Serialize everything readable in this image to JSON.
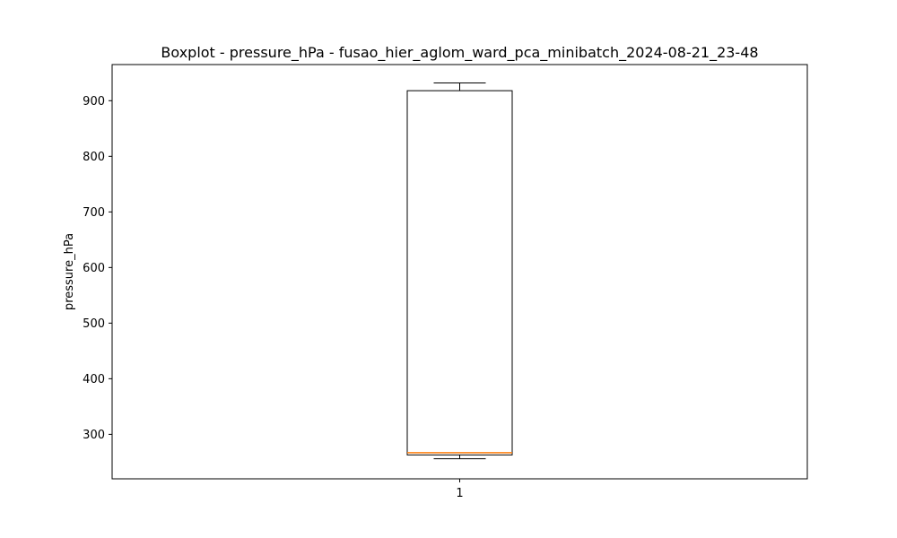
{
  "chart_data": {
    "type": "boxplot",
    "title": "Boxplot - pressure_hPa - fusao_hier_aglom_ward_pca_minibatch_2024-08-21_23-48",
    "xlabel": "",
    "ylabel": "pressure_hPa",
    "ylim": [
      220,
      965
    ],
    "yticks": [
      300,
      400,
      500,
      600,
      700,
      800,
      900
    ],
    "categories": [
      "1"
    ],
    "boxes": [
      {
        "category": "1",
        "whisker_low": 256,
        "q1": 263,
        "median": 267,
        "q3": 918,
        "whisker_high": 932
      }
    ],
    "grid": false,
    "colors": {
      "box": "#000000",
      "median": "#ff7f0e",
      "whisker": "#000000"
    }
  }
}
